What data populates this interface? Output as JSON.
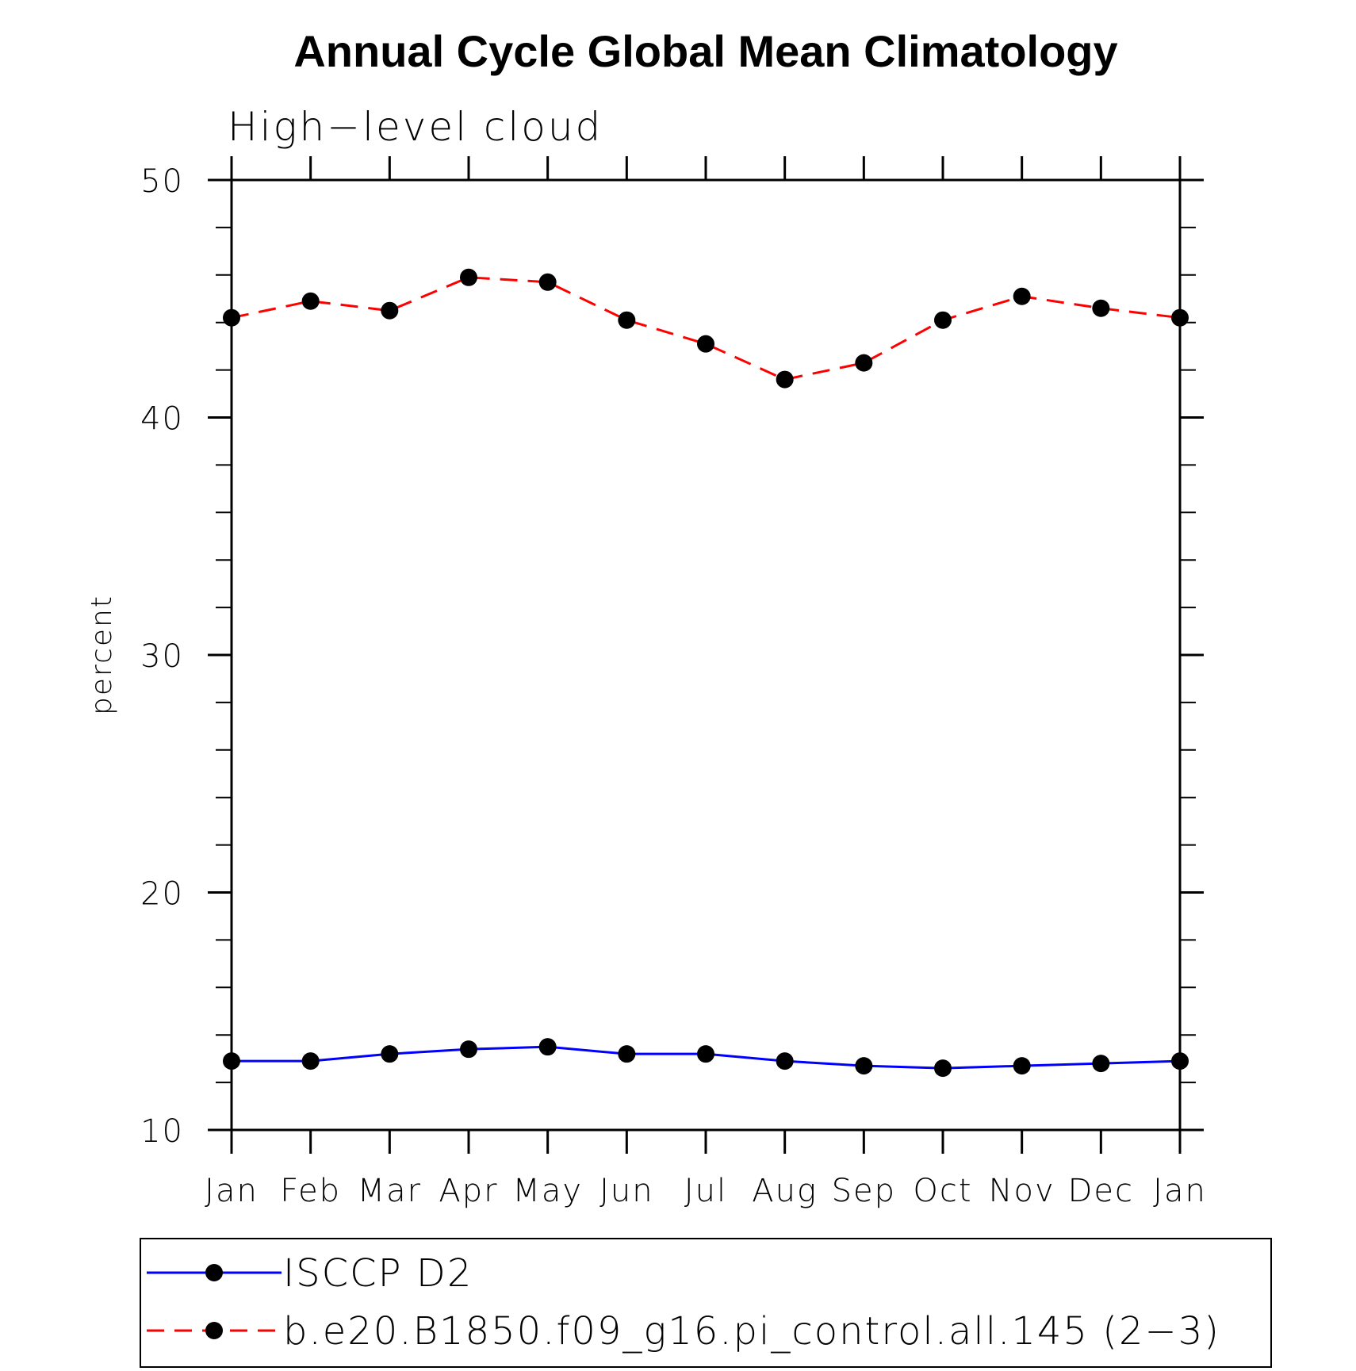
{
  "chart_data": {
    "type": "line",
    "title": "Annual Cycle Global Mean Climatology",
    "subtitle": "High−level cloud",
    "ylabel": "percent",
    "xlabel": "",
    "ylim": [
      10,
      50
    ],
    "yticks": [
      "10",
      "20",
      "30",
      "40",
      "50"
    ],
    "categories": [
      "Jan",
      "Feb",
      "Mar",
      "Apr",
      "May",
      "Jun",
      "Jul",
      "Aug",
      "Sep",
      "Oct",
      "Nov",
      "Dec",
      "Jan"
    ],
    "grid": false,
    "legend_position": "bottom",
    "series": [
      {
        "name": "ISCCP D2",
        "color": "#0000ff",
        "dash": "solid",
        "values": [
          12.9,
          12.9,
          13.2,
          13.4,
          13.5,
          13.2,
          13.2,
          12.9,
          12.7,
          12.6,
          12.7,
          12.8,
          12.9
        ]
      },
      {
        "name": "b.e20.B1850.f09_g16.pi_control.all.145 (2−3)",
        "color": "#ff0000",
        "dash": "dashed",
        "values": [
          44.2,
          44.9,
          44.5,
          45.9,
          45.7,
          44.1,
          43.1,
          41.6,
          42.3,
          44.1,
          45.1,
          44.6,
          44.2
        ]
      }
    ]
  }
}
